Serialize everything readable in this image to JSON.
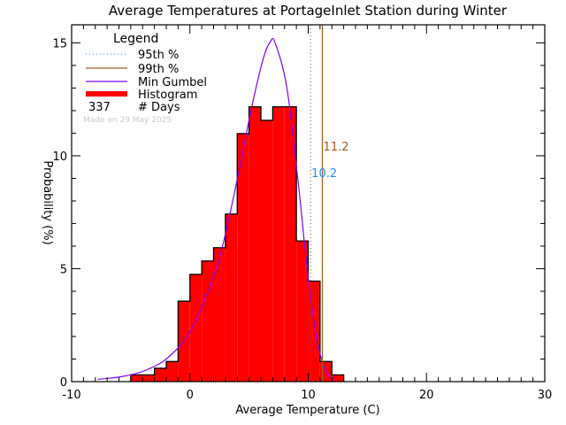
{
  "chart_data": {
    "type": "bar",
    "title": "Average Temperatures at PortageInlet Station during Winter",
    "xlabel": "Average Temperature (C)",
    "ylabel": "Probability (%)",
    "xlim": [
      -10,
      30
    ],
    "ylim": [
      0,
      15.8
    ],
    "xticks": [
      "-10",
      "0",
      "10",
      "20",
      "30"
    ],
    "xtick_values": [
      -10,
      0,
      10,
      20,
      30
    ],
    "yticks": [
      "0",
      "5",
      "10",
      "15"
    ],
    "ytick_values": [
      0,
      5,
      10,
      15
    ],
    "grid": false,
    "histogram": {
      "name": "Histogram",
      "bin_width": 1,
      "bin_starts": [
        -5,
        -4,
        -3,
        -2,
        -1,
        0,
        1,
        2,
        3,
        4,
        5,
        6,
        7,
        8,
        9,
        10,
        11,
        12
      ],
      "values": [
        0.3,
        0.3,
        0.59,
        0.89,
        3.56,
        4.75,
        5.34,
        5.93,
        7.42,
        10.98,
        12.17,
        11.57,
        12.17,
        12.17,
        6.23,
        4.45,
        0.89,
        0.3
      ],
      "color": "#ff0000"
    },
    "gumbel": {
      "name": "Min Gumbel",
      "color": "#8000ff",
      "x": [
        -7.8,
        -5.8,
        -3.8,
        -1.8,
        0.2,
        2.2,
        3.2,
        4.2,
        5.2,
        6.2,
        6.8,
        7.2,
        8.2,
        9.2,
        9.7,
        10.2,
        10.7,
        11.2,
        11.7,
        12.2
      ],
      "y": [
        0.1,
        0.22,
        0.49,
        1.09,
        2.38,
        4.99,
        7.0,
        9.47,
        12.1,
        14.3,
        15.05,
        15.0,
        13.0,
        8.6,
        6.03,
        3.74,
        1.98,
        0.87,
        0.3,
        0.08
      ]
    },
    "percentile_95": {
      "name": "95th %",
      "value": 10.2,
      "label": "10.2",
      "color": "#a0522d",
      "legend_color": "#1e90ff",
      "label_color": "#1e90ff"
    },
    "percentile_99": {
      "name": "99th %",
      "value": 11.2,
      "label": "11.2",
      "color": "#a0601e",
      "label_color": "#a0601e"
    },
    "legend": {
      "title": "Legend",
      "placement": "top-left",
      "days_count": "337",
      "days_label": "# Days",
      "made_on": "Made on 29 May 2025"
    }
  }
}
